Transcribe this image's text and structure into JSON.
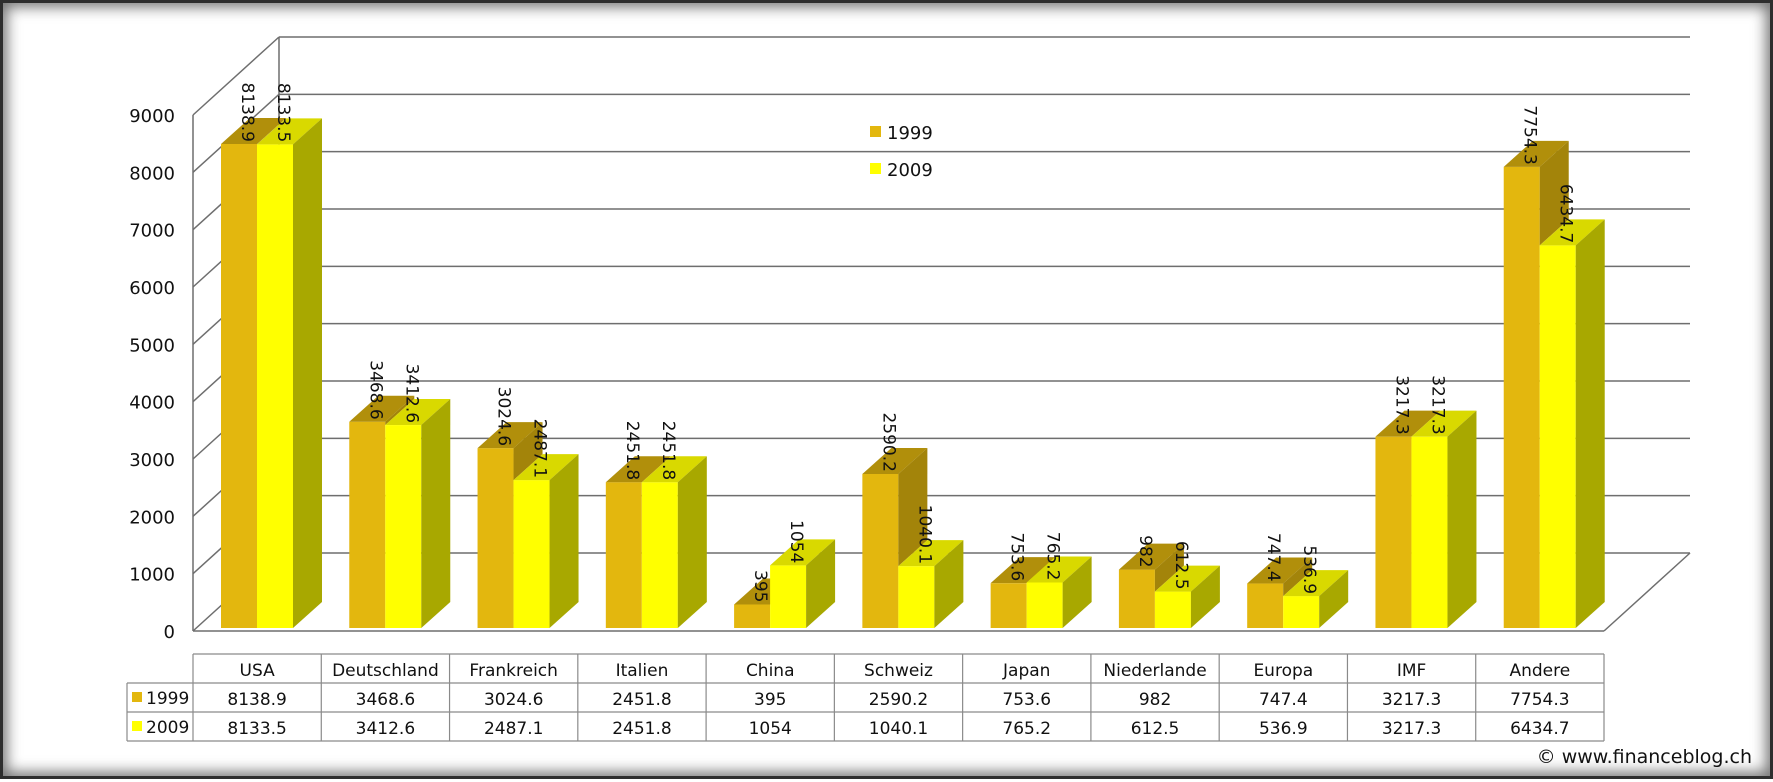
{
  "chart_data": {
    "type": "bar",
    "title": "",
    "xlabel": "",
    "ylabel": "",
    "ylim": [
      0,
      9000
    ],
    "yticks": [
      0,
      1000,
      2000,
      3000,
      4000,
      5000,
      6000,
      7000,
      8000,
      9000
    ],
    "grid": true,
    "legend_position": "top-center",
    "categories": [
      "USA",
      "Deutschland",
      "Frankreich",
      "Italien",
      "China",
      "Schweiz",
      "Japan",
      "Niederlande",
      "Europa",
      "IMF",
      "Andere"
    ],
    "series": [
      {
        "name": "1999",
        "color": "#e3b70e",
        "values": [
          8138.9,
          3468.6,
          3024.6,
          2451.8,
          395,
          2590.2,
          753.6,
          982,
          747.4,
          3217.3,
          7754.3
        ],
        "labels": [
          "8138.9",
          "3468.6",
          "3024.6",
          "2451.8",
          "395",
          "2590.2",
          "753.6",
          "982",
          "747.4",
          "3217.3",
          "7754.3"
        ]
      },
      {
        "name": "2009",
        "color": "#ffff00",
        "values": [
          8133.5,
          3412.6,
          2487.1,
          2451.8,
          1054,
          1040.1,
          765.2,
          612.5,
          536.9,
          3217.3,
          6434.7
        ],
        "labels": [
          "8133.5",
          "3412.6",
          "2487.1",
          "2451.8",
          "1054",
          "1040.1",
          "765.2",
          "612.5",
          "536.9",
          "3217.3",
          "6434.7"
        ]
      }
    ],
    "data_table": true
  },
  "copyright": "© www.financeblog.ch"
}
